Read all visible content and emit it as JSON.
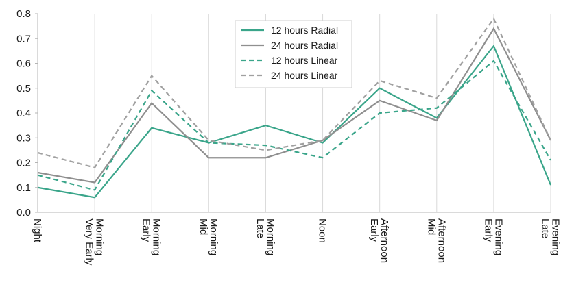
{
  "chart_data": {
    "type": "line",
    "title": "",
    "xlabel": "",
    "ylabel": "",
    "ylim": [
      0,
      0.8
    ],
    "yticks": [
      "0.0",
      "0.1",
      "0.2",
      "0.3",
      "0.4",
      "0.5",
      "0.6",
      "0.7",
      "0.8"
    ],
    "grid": "vertical",
    "legend_position": "top-center",
    "categories": [
      [
        "Night"
      ],
      [
        "Very Early",
        "Morning"
      ],
      [
        "Early",
        "Morning"
      ],
      [
        "Mid",
        "Morning"
      ],
      [
        "Late",
        "Morning"
      ],
      [
        "Noon"
      ],
      [
        "Early",
        "Afternoon"
      ],
      [
        "Mid",
        "Afternoon"
      ],
      [
        "Early",
        "Evening"
      ],
      [
        "Late",
        "Evening"
      ]
    ],
    "series": [
      {
        "name": "12 hours Radial",
        "color": "#3aa58a",
        "style": "solid",
        "values": [
          0.1,
          0.06,
          0.34,
          0.28,
          0.35,
          0.28,
          0.5,
          0.38,
          0.67,
          0.11
        ]
      },
      {
        "name": "24 hours Radial",
        "color": "#8f8f8f",
        "style": "solid",
        "values": [
          0.16,
          0.12,
          0.44,
          0.22,
          0.22,
          0.29,
          0.45,
          0.37,
          0.74,
          0.29
        ]
      },
      {
        "name": "12 hours Linear",
        "color": "#3aa58a",
        "style": "dashed",
        "values": [
          0.15,
          0.09,
          0.49,
          0.28,
          0.27,
          0.22,
          0.4,
          0.42,
          0.61,
          0.21
        ]
      },
      {
        "name": "24 hours Linear",
        "color": "#a0a0a0",
        "style": "dashed",
        "values": [
          0.24,
          0.18,
          0.55,
          0.29,
          0.25,
          0.29,
          0.53,
          0.46,
          0.78,
          0.29
        ]
      }
    ]
  }
}
